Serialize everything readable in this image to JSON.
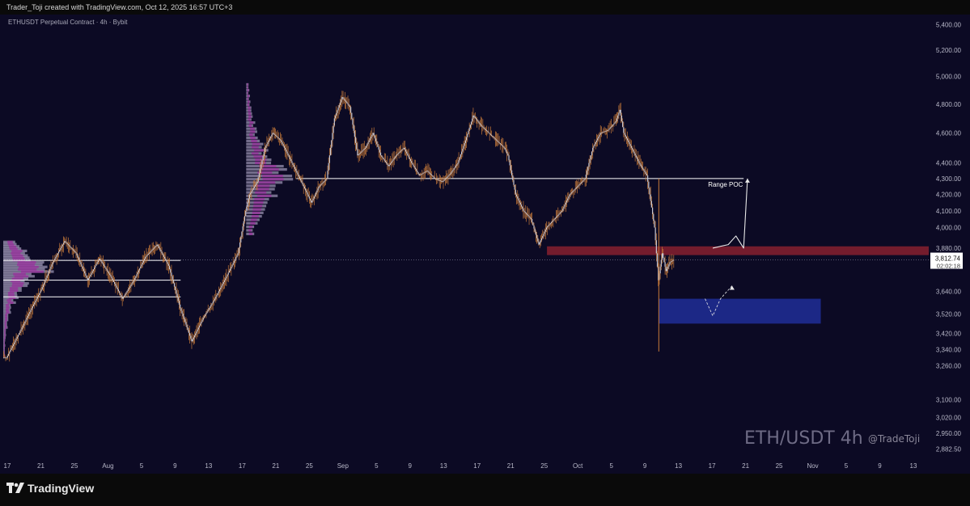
{
  "header": {
    "credit": "Trader_Toji created with TradingView.com, Oct 12, 2025 16:57 UTC+3",
    "symbol_line": "ETHUSDT Perpetual Contract · 4h · Bybit"
  },
  "footer": {
    "brand": "TradingView",
    "logo_icon": "tradingview-logo-icon"
  },
  "watermark": {
    "title": "ETH/USDT 4h",
    "handle": "@TradeToji"
  },
  "colors": {
    "background": "#0c0a24",
    "candle_body": "#c9c9d4",
    "candle_wick": "#c77a3a",
    "volume_profile_main": "#c8c0e0",
    "volume_profile_accent": "#a020a0",
    "supply_zone": "#7a1e2e",
    "demand_zone": "#1e2a8c",
    "range_poc_line": "#ffffff"
  },
  "chart_data": {
    "type": "candlestick",
    "symbol": "ETHUSDT Perpetual Contract",
    "timeframe": "4h",
    "exchange": "Bybit",
    "y_axis": {
      "scale": "log",
      "ylim": [
        2840,
        5480
      ],
      "ticks": [
        "5,400.00",
        "5,200.00",
        "5,000.00",
        "4,800.00",
        "4,600.00",
        "4,400.00",
        "4,300.00",
        "4,200.00",
        "4,100.00",
        "4,000.00",
        "3,880.00",
        "3,640.00",
        "3,520.00",
        "3,420.00",
        "3,340.00",
        "3,260.00",
        "3,100.00",
        "3,020.00",
        "2,950.00",
        "2,882.50"
      ]
    },
    "x_axis": {
      "ticks": [
        "17",
        "21",
        "25",
        "Aug",
        "5",
        "9",
        "13",
        "17",
        "21",
        "25",
        "Sep",
        "5",
        "9",
        "13",
        "17",
        "21",
        "25",
        "Oct",
        "5",
        "9",
        "13",
        "17",
        "21",
        "25",
        "Nov",
        "5",
        "9",
        "13"
      ]
    },
    "price_label": {
      "value": "3,812.74",
      "countdown": "02:02:18"
    },
    "close_price": 3812.74,
    "price_path": [
      [
        1,
        3300
      ],
      [
        5,
        3450
      ],
      [
        10,
        3650
      ],
      [
        13,
        3800
      ],
      [
        16,
        3920
      ],
      [
        19,
        3850
      ],
      [
        22,
        3700
      ],
      [
        25,
        3820
      ],
      [
        28,
        3720
      ],
      [
        31,
        3600
      ],
      [
        34,
        3700
      ],
      [
        37,
        3830
      ],
      [
        40,
        3900
      ],
      [
        43,
        3780
      ],
      [
        46,
        3550
      ],
      [
        49,
        3380
      ],
      [
        52,
        3500
      ],
      [
        55,
        3600
      ],
      [
        58,
        3720
      ],
      [
        61,
        3850
      ],
      [
        63,
        4100
      ],
      [
        64,
        4200
      ],
      [
        66,
        4280
      ],
      [
        68,
        4500
      ],
      [
        70,
        4600
      ],
      [
        72,
        4550
      ],
      [
        74,
        4450
      ],
      [
        76,
        4350
      ],
      [
        78,
        4250
      ],
      [
        80,
        4150
      ],
      [
        82,
        4250
      ],
      [
        84,
        4300
      ],
      [
        86,
        4700
      ],
      [
        88,
        4850
      ],
      [
        90,
        4780
      ],
      [
        92,
        4450
      ],
      [
        94,
        4500
      ],
      [
        96,
        4600
      ],
      [
        98,
        4450
      ],
      [
        100,
        4380
      ],
      [
        102,
        4450
      ],
      [
        104,
        4500
      ],
      [
        106,
        4400
      ],
      [
        108,
        4320
      ],
      [
        110,
        4350
      ],
      [
        112,
        4300
      ],
      [
        114,
        4280
      ],
      [
        116,
        4330
      ],
      [
        118,
        4400
      ],
      [
        120,
        4550
      ],
      [
        122,
        4720
      ],
      [
        124,
        4650
      ],
      [
        126,
        4600
      ],
      [
        128,
        4550
      ],
      [
        130,
        4500
      ],
      [
        131,
        4450
      ],
      [
        132,
        4320
      ],
      [
        133,
        4200
      ],
      [
        135,
        4100
      ],
      [
        137,
        4050
      ],
      [
        139,
        3900
      ],
      [
        141,
        4000
      ],
      [
        143,
        4050
      ],
      [
        145,
        4100
      ],
      [
        147,
        4200
      ],
      [
        149,
        4250
      ],
      [
        151,
        4300
      ],
      [
        153,
        4500
      ],
      [
        155,
        4600
      ],
      [
        157,
        4620
      ],
      [
        159,
        4680
      ],
      [
        160,
        4760
      ],
      [
        161,
        4600
      ],
      [
        163,
        4500
      ],
      [
        165,
        4400
      ],
      [
        167,
        4320
      ],
      [
        169,
        4000
      ],
      [
        170,
        3700
      ],
      [
        171,
        3850
      ],
      [
        172,
        3750
      ],
      [
        173,
        3800
      ],
      [
        174,
        3812.74
      ]
    ],
    "volume_profiles": [
      {
        "start_x": 0,
        "price_range": [
          3300,
          3920
        ],
        "poc": 3760
      },
      {
        "start_x": 63,
        "price_range": [
          3950,
          4950
        ],
        "poc": 4300
      }
    ],
    "levels": [
      {
        "name": "Range POC",
        "price": 4300,
        "from_x": 76,
        "to_x": 192,
        "label": "Range POC"
      },
      {
        "price": 3810,
        "from_x": 0,
        "to_x": 46
      },
      {
        "price": 3700,
        "from_x": 0,
        "to_x": 46
      },
      {
        "price": 3610,
        "from_x": 0,
        "to_x": 46
      }
    ],
    "zones": [
      {
        "name": "supply",
        "from_x": 141,
        "to_x": 240,
        "top": 3890,
        "bottom": 3840
      },
      {
        "name": "demand",
        "from_x": 170,
        "to_x": 212,
        "top": 3600,
        "bottom": 3470
      }
    ],
    "projections": [
      {
        "name": "bullish-path",
        "points": [
          [
            184,
            3880
          ],
          [
            188,
            3900
          ],
          [
            190,
            3950
          ],
          [
            192,
            3880
          ],
          [
            193,
            4300
          ]
        ]
      },
      {
        "name": "bearish-path",
        "points": [
          [
            182,
            3600
          ],
          [
            184,
            3510
          ],
          [
            186,
            3600
          ],
          [
            189,
            3670
          ]
        ]
      }
    ],
    "annotations": [
      "Range POC"
    ]
  }
}
